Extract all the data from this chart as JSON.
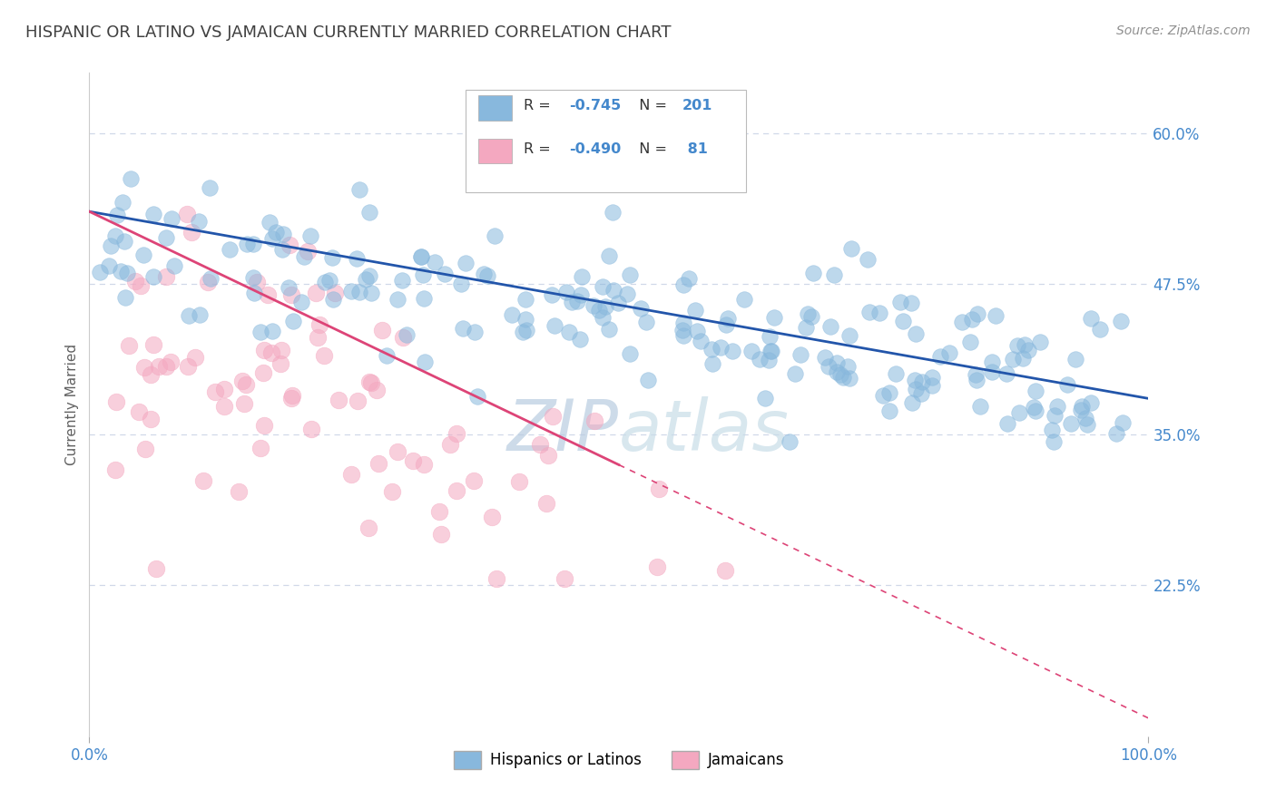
{
  "title": "HISPANIC OR LATINO VS JAMAICAN CURRENTLY MARRIED CORRELATION CHART",
  "source_text": "Source: ZipAtlas.com",
  "ylabel": "Currently Married",
  "x_min": 0.0,
  "x_max": 1.0,
  "y_min": 0.1,
  "y_max": 0.65,
  "yticks": [
    0.225,
    0.35,
    0.475,
    0.6
  ],
  "ytick_labels": [
    "22.5%",
    "35.0%",
    "47.5%",
    "60.0%"
  ],
  "blue_R": -0.745,
  "blue_N": 201,
  "blue_color": "#88b8dd",
  "blue_edge_color": "#5599cc",
  "blue_trend_color": "#2255aa",
  "pink_R": -0.49,
  "pink_N": 81,
  "pink_color": "#f4a8c0",
  "pink_edge_color": "#dd7799",
  "pink_trend_color": "#dd4477",
  "pink_trend_solid_end": 0.5,
  "blue_intercept": 0.535,
  "blue_slope": -0.155,
  "pink_intercept": 0.535,
  "pink_slope": -0.42,
  "watermark_zip": "ZIP",
  "watermark_atlas": "atlas",
  "watermark_zip_color": "#b8cce0",
  "watermark_atlas_color": "#c8dde8",
  "background_color": "#ffffff",
  "grid_color": "#d0d8e8",
  "title_color": "#404040",
  "axis_label_color": "#606060",
  "tick_label_color": "#4488cc",
  "source_color": "#909090",
  "legend_text_color_R": "#4488cc",
  "legend_text_color_N": "#222222"
}
